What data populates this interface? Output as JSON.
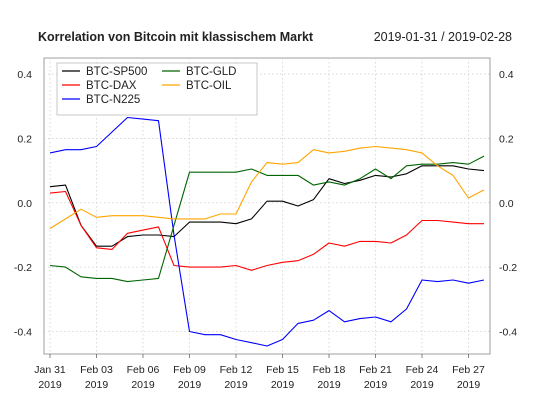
{
  "chart_data": {
    "type": "line",
    "title": "Korrelation von Bitcoin mit klassischem Markt",
    "subtitle": "2019-01-31 / 2019-02-28",
    "xlabel": "",
    "ylabel": "",
    "x": [
      "2019-01-31",
      "2019-02-01",
      "2019-02-02",
      "2019-02-03",
      "2019-02-04",
      "2019-02-05",
      "2019-02-06",
      "2019-02-07",
      "2019-02-08",
      "2019-02-09",
      "2019-02-10",
      "2019-02-11",
      "2019-02-12",
      "2019-02-13",
      "2019-02-14",
      "2019-02-15",
      "2019-02-16",
      "2019-02-17",
      "2019-02-18",
      "2019-02-19",
      "2019-02-20",
      "2019-02-21",
      "2019-02-22",
      "2019-02-23",
      "2019-02-24",
      "2019-02-25",
      "2019-02-26",
      "2019-02-27",
      "2019-02-28"
    ],
    "x_ticks": [
      {
        "date": "2019-01-31",
        "line1": "Jan 31",
        "line2": "2019"
      },
      {
        "date": "2019-02-03",
        "line1": "Feb 03",
        "line2": "2019"
      },
      {
        "date": "2019-02-06",
        "line1": "Feb 06",
        "line2": "2019"
      },
      {
        "date": "2019-02-09",
        "line1": "Feb 09",
        "line2": "2019"
      },
      {
        "date": "2019-02-12",
        "line1": "Feb 12",
        "line2": "2019"
      },
      {
        "date": "2019-02-15",
        "line1": "Feb 15",
        "line2": "2019"
      },
      {
        "date": "2019-02-18",
        "line1": "Feb 18",
        "line2": "2019"
      },
      {
        "date": "2019-02-21",
        "line1": "Feb 21",
        "line2": "2019"
      },
      {
        "date": "2019-02-24",
        "line1": "Feb 24",
        "line2": "2019"
      },
      {
        "date": "2019-02-27",
        "line1": "Feb 27",
        "line2": "2019"
      }
    ],
    "y_ticks": [
      -0.4,
      -0.2,
      0.0,
      0.2,
      0.4
    ],
    "y_tick_labels": [
      "-0.4",
      "-0.2",
      "0.0",
      "0.2",
      "0.4"
    ],
    "ylim": [
      -0.47,
      0.45
    ],
    "grid": true,
    "legend_position": "top-left",
    "series": [
      {
        "name": "BTC-SP500",
        "color": "#000000",
        "values": [
          0.05,
          0.055,
          -0.07,
          -0.135,
          -0.135,
          -0.105,
          -0.1,
          -0.1,
          -0.105,
          -0.06,
          -0.06,
          -0.06,
          -0.065,
          -0.05,
          0.005,
          0.005,
          -0.01,
          0.01,
          0.075,
          0.06,
          0.07,
          0.085,
          0.08,
          0.09,
          0.115,
          0.115,
          0.115,
          0.105,
          0.1
        ]
      },
      {
        "name": "BTC-DAX",
        "color": "#ff0000",
        "values": [
          0.03,
          0.035,
          -0.07,
          -0.14,
          -0.145,
          -0.095,
          -0.085,
          -0.075,
          -0.195,
          -0.2,
          -0.2,
          -0.2,
          -0.195,
          -0.21,
          -0.195,
          -0.185,
          -0.18,
          -0.16,
          -0.125,
          -0.135,
          -0.12,
          -0.12,
          -0.125,
          -0.1,
          -0.055,
          -0.055,
          -0.06,
          -0.065,
          -0.065
        ]
      },
      {
        "name": "BTC-N225",
        "color": "#0000ff",
        "values": [
          0.155,
          0.165,
          0.165,
          0.175,
          0.22,
          0.265,
          0.26,
          0.255,
          -0.1,
          -0.4,
          -0.41,
          -0.41,
          -0.425,
          -0.435,
          -0.445,
          -0.425,
          -0.375,
          -0.365,
          -0.335,
          -0.37,
          -0.36,
          -0.355,
          -0.37,
          -0.33,
          -0.24,
          -0.245,
          -0.24,
          -0.25,
          -0.24
        ]
      },
      {
        "name": "BTC-GLD",
        "color": "#006400",
        "values": [
          -0.195,
          -0.2,
          -0.23,
          -0.235,
          -0.235,
          -0.245,
          -0.24,
          -0.235,
          -0.07,
          0.095,
          0.095,
          0.095,
          0.095,
          0.105,
          0.085,
          0.085,
          0.085,
          0.055,
          0.065,
          0.055,
          0.075,
          0.105,
          0.075,
          0.115,
          0.12,
          0.12,
          0.125,
          0.12,
          0.145
        ]
      },
      {
        "name": "BTC-OIL",
        "color": "#ffa500",
        "values": [
          -0.08,
          -0.05,
          -0.02,
          -0.045,
          -0.04,
          -0.04,
          -0.04,
          -0.045,
          -0.05,
          -0.05,
          -0.05,
          -0.035,
          -0.035,
          0.065,
          0.125,
          0.12,
          0.125,
          0.165,
          0.155,
          0.16,
          0.17,
          0.175,
          0.17,
          0.165,
          0.155,
          0.115,
          0.085,
          0.015,
          0.04
        ]
      }
    ]
  }
}
